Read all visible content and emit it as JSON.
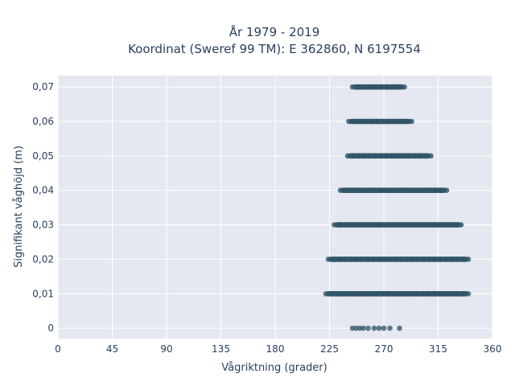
{
  "chart_data": {
    "type": "scatter",
    "title_line1": "År 1979 - 2019",
    "title_line2": "Koordinat (Sweref 99 TM): E 362860, N 6197554",
    "xlabel": "Vågriktning (grader)",
    "ylabel": "Signifikant våghöjd (m)",
    "xlim": [
      0,
      360
    ],
    "ylim": [
      -0.003,
      0.0733
    ],
    "x_ticks": [
      0,
      45,
      90,
      135,
      180,
      225,
      270,
      315,
      360
    ],
    "x_tick_labels": [
      "0",
      "45",
      "90",
      "135",
      "180",
      "225",
      "270",
      "315",
      "360"
    ],
    "y_ticks": [
      0,
      0.01,
      0.02,
      0.03,
      0.04,
      0.05,
      0.06,
      0.07
    ],
    "y_tick_labels": [
      "0",
      "0,01",
      "0,02",
      "0,03",
      "0,04",
      "0,05",
      "0,06",
      "0,07"
    ],
    "grid": true,
    "marker_color": "#2e5266",
    "plot_bg": "#e5e8f0",
    "bands": [
      {
        "y": 0.07,
        "x_min": 244,
        "x_max": 287
      },
      {
        "y": 0.06,
        "x_min": 241,
        "x_max": 293
      },
      {
        "y": 0.05,
        "x_min": 240,
        "x_max": 309
      },
      {
        "y": 0.04,
        "x_min": 234,
        "x_max": 322
      },
      {
        "y": 0.03,
        "x_min": 229,
        "x_max": 334
      },
      {
        "y": 0.02,
        "x_min": 224,
        "x_max": 340
      },
      {
        "y": 0.01,
        "x_min": 222,
        "x_max": 340
      }
    ],
    "zero_points": [
      {
        "x": 244,
        "y": 0
      },
      {
        "x": 247,
        "y": 0
      },
      {
        "x": 250,
        "y": 0
      },
      {
        "x": 253,
        "y": 0
      },
      {
        "x": 257,
        "y": 0
      },
      {
        "x": 262,
        "y": 0
      },
      {
        "x": 266,
        "y": 0
      },
      {
        "x": 270,
        "y": 0
      },
      {
        "x": 275,
        "y": 0
      },
      {
        "x": 283,
        "y": 0
      }
    ]
  }
}
